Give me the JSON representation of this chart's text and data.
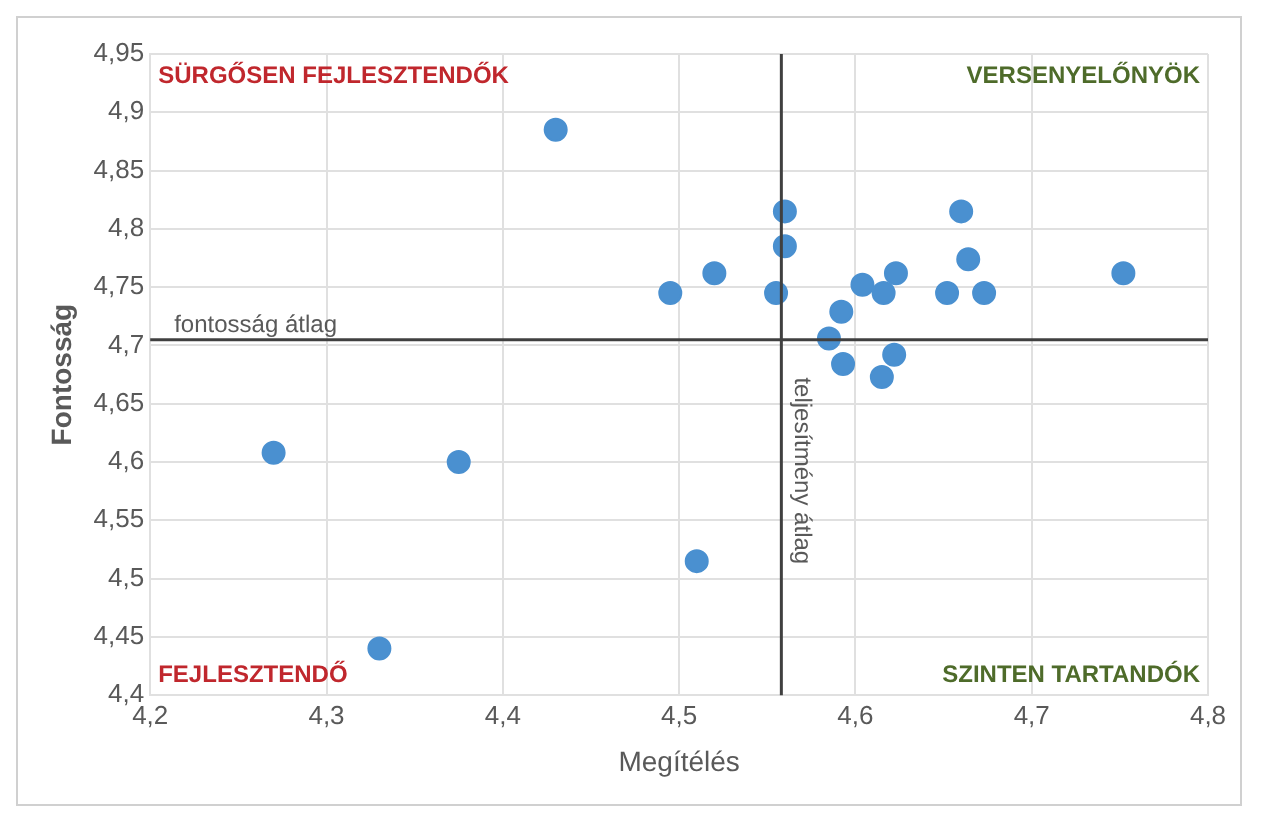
{
  "chart_data": {
    "type": "scatter",
    "xlabel": "Megítélés",
    "ylabel": "Fontosság",
    "x": [
      4.43,
      4.27,
      4.375,
      4.51,
      4.33,
      4.495,
      4.52,
      4.56,
      4.56,
      4.555,
      4.592,
      4.585,
      4.593,
      4.604,
      4.616,
      4.623,
      4.622,
      4.615,
      4.66,
      4.664,
      4.652,
      4.673,
      4.752
    ],
    "values": [
      4.885,
      4.608,
      4.6,
      4.515,
      4.44,
      4.745,
      4.762,
      4.815,
      4.785,
      4.745,
      4.729,
      4.706,
      4.684,
      4.752,
      4.745,
      4.762,
      4.692,
      4.673,
      4.815,
      4.774,
      4.745,
      4.745,
      4.762
    ],
    "color": "#4a90d0",
    "marker": "circle",
    "xlim": [
      4.2,
      4.8
    ],
    "xticks": [
      {
        "value": 4.2,
        "label": "4,2"
      },
      {
        "value": 4.3,
        "label": "4,3"
      },
      {
        "value": 4.4,
        "label": "4,4"
      },
      {
        "value": 4.5,
        "label": "4,5"
      },
      {
        "value": 4.6,
        "label": "4,6"
      },
      {
        "value": 4.7,
        "label": "4,7"
      },
      {
        "value": 4.8,
        "label": "4,8"
      }
    ],
    "ylim": [
      4.4,
      4.95
    ],
    "yticks": [
      {
        "value": 4.4,
        "label": "4,4"
      },
      {
        "value": 4.45,
        "label": "4,45"
      },
      {
        "value": 4.5,
        "label": "4,5"
      },
      {
        "value": 4.55,
        "label": "4,55"
      },
      {
        "value": 4.6,
        "label": "4,6"
      },
      {
        "value": 4.65,
        "label": "4,65"
      },
      {
        "value": 4.7,
        "label": "4,7"
      },
      {
        "value": 4.75,
        "label": "4,75"
      },
      {
        "value": 4.8,
        "label": "4,8"
      },
      {
        "value": 4.85,
        "label": "4,85"
      },
      {
        "value": 4.9,
        "label": "4,9"
      },
      {
        "value": 4.95,
        "label": "4,95"
      }
    ],
    "grid": true,
    "legend": false,
    "ref_lines": [
      {
        "axis": "y",
        "value": 4.705,
        "label": "fontosság átlag",
        "color": "#404040"
      },
      {
        "axis": "x",
        "value": 4.558,
        "label": "teljesítmény átlag",
        "color": "#404040"
      }
    ],
    "annotations": [
      "SÜRGŐSEN FEJLESZTENDŐK",
      "VERSENYELŐNYÖK",
      "FEJLESZTENDŐ",
      "SZINTEN TARTANDÓK"
    ]
  }
}
